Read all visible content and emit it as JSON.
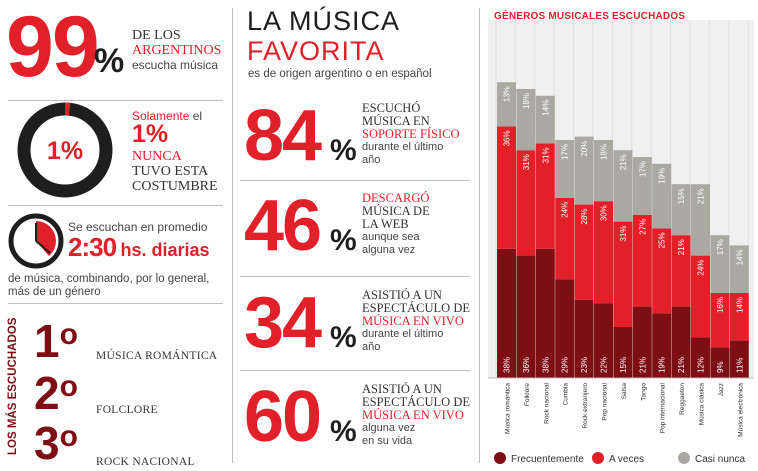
{
  "colors": {
    "red": "#e2202a",
    "dark_red": "#7d0f14",
    "gray": "#a9a9a2",
    "text": "#333333"
  },
  "left": {
    "stat99": {
      "number": "99",
      "pct": "%",
      "line1": "DE LOS",
      "line2": "ARGENTINOS",
      "line3": "escucha música"
    },
    "stat1": {
      "donut_pct": "1%",
      "donut_value": 1,
      "line1a": "Solamente",
      "line1b": "el",
      "big": "1%",
      "line3": "NUNCA",
      "line4": "TUVO ESTA",
      "line5": "COSTUMBRE"
    },
    "time": {
      "clock_icon": "clock-icon",
      "line1": "Se escuchan en promedio",
      "value": "2:30",
      "unit": "hs. diarias",
      "desc1": "de música, combinando, por lo general,",
      "desc2": "más de un género"
    },
    "ranking": {
      "vertical_title": "LOS MÁS ESCUCHADOS",
      "items": [
        {
          "rank": "1",
          "sup": "o",
          "name": "MÚSICA ROMÁNTICA"
        },
        {
          "rank": "2",
          "sup": "o",
          "name": "FOLCLORE"
        },
        {
          "rank": "3",
          "sup": "o",
          "name": "ROCK NACIONAL"
        }
      ]
    }
  },
  "middle": {
    "title1": "LA MÚSICA",
    "title2": "FAVORITA",
    "subtitle": "es de origen argentino o en español",
    "stats": [
      {
        "number": "84",
        "pct": "%",
        "l1": "ESCUCHÓ",
        "l2": "MÚSICA EN",
        "l3": "SOPORTE FÍSICO",
        "l4": "durante el último",
        "l5": "año"
      },
      {
        "number": "46",
        "pct": "%",
        "l1": "DESCARGÓ",
        "l2": "MÚSICA DE",
        "l3": "LA WEB",
        "l4": "aunque sea",
        "l5": "alguna vez"
      },
      {
        "number": "34",
        "pct": "%",
        "l1": "ASISTIÓ A UN",
        "l2": "ESPECTÁCULO DE",
        "l3": "MÚSICA EN VIVO",
        "l4": "durante el último",
        "l5": "año"
      },
      {
        "number": "60",
        "pct": "%",
        "l1": "ASISTIÓ A UN",
        "l2": "ESPECTÁCULO DE",
        "l3": "MÚSICA EN VIVO",
        "l4": "alguna vez",
        "l5": "en su vida"
      }
    ]
  },
  "chart_data": {
    "type": "bar",
    "stacked": true,
    "title": "GÉNEROS MUSICALES ESCUCHADOS",
    "categories": [
      "Música romántica",
      "Folklore",
      "Rock nacional",
      "Cumbia",
      "Rock extranjero",
      "Pop nacional",
      "Salsa",
      "Tango",
      "Pop internacional",
      "Reggaeton",
      "Música clásica",
      "Jazz",
      "Música electrónica"
    ],
    "series": [
      {
        "name": "Frecuentemente",
        "color": "#7d0f14",
        "values": [
          38,
          36,
          38,
          29,
          23,
          22,
          15,
          21,
          19,
          21,
          12,
          9,
          11
        ]
      },
      {
        "name": "A veces",
        "color": "#e2202a",
        "values": [
          36,
          31,
          31,
          24,
          28,
          30,
          31,
          27,
          25,
          21,
          24,
          16,
          14
        ]
      },
      {
        "name": "Casi nunca",
        "color": "#a9a9a2",
        "values": [
          13,
          18,
          14,
          17,
          20,
          18,
          21,
          17,
          19,
          15,
          21,
          17,
          14
        ]
      }
    ],
    "legend": "bottom",
    "grid": false
  }
}
